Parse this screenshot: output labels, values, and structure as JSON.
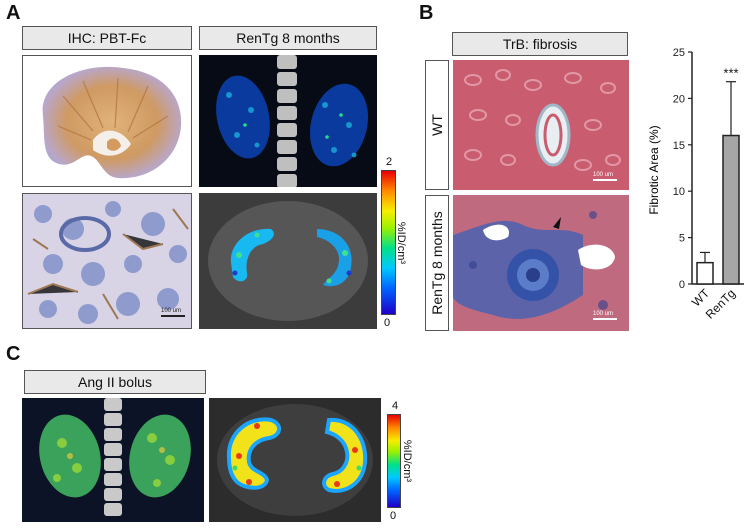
{
  "panels": {
    "A": {
      "letter": "A",
      "header_left": "IHC: PBT-Fc",
      "header_right": "RenTg 8 months",
      "colorbar": {
        "min": "0",
        "max": "2",
        "unit": "%ID/cm³"
      },
      "scale_label": "100 um"
    },
    "B": {
      "letter": "B",
      "header": "TrB: fibrosis",
      "row_labels": [
        "WT",
        "RenTg 8 months"
      ],
      "scale_label": "100 um"
    },
    "C": {
      "letter": "C",
      "header": "Ang II bolus",
      "colorbar": {
        "min": "0",
        "max": "4",
        "unit": "%ID/cm³"
      }
    }
  },
  "chart_data": {
    "type": "bar",
    "categories": [
      "WT",
      "RenTg"
    ],
    "values": [
      2.3,
      16.0
    ],
    "errors": [
      1.1,
      5.8
    ],
    "colors": [
      "#ffffff",
      "#a6a6a6"
    ],
    "ylabel": "Fibrotic Area (%)",
    "ylim": [
      0,
      25
    ],
    "yticks": [
      "0",
      "5",
      "10",
      "15",
      "20",
      "25"
    ],
    "annotation": "***"
  }
}
